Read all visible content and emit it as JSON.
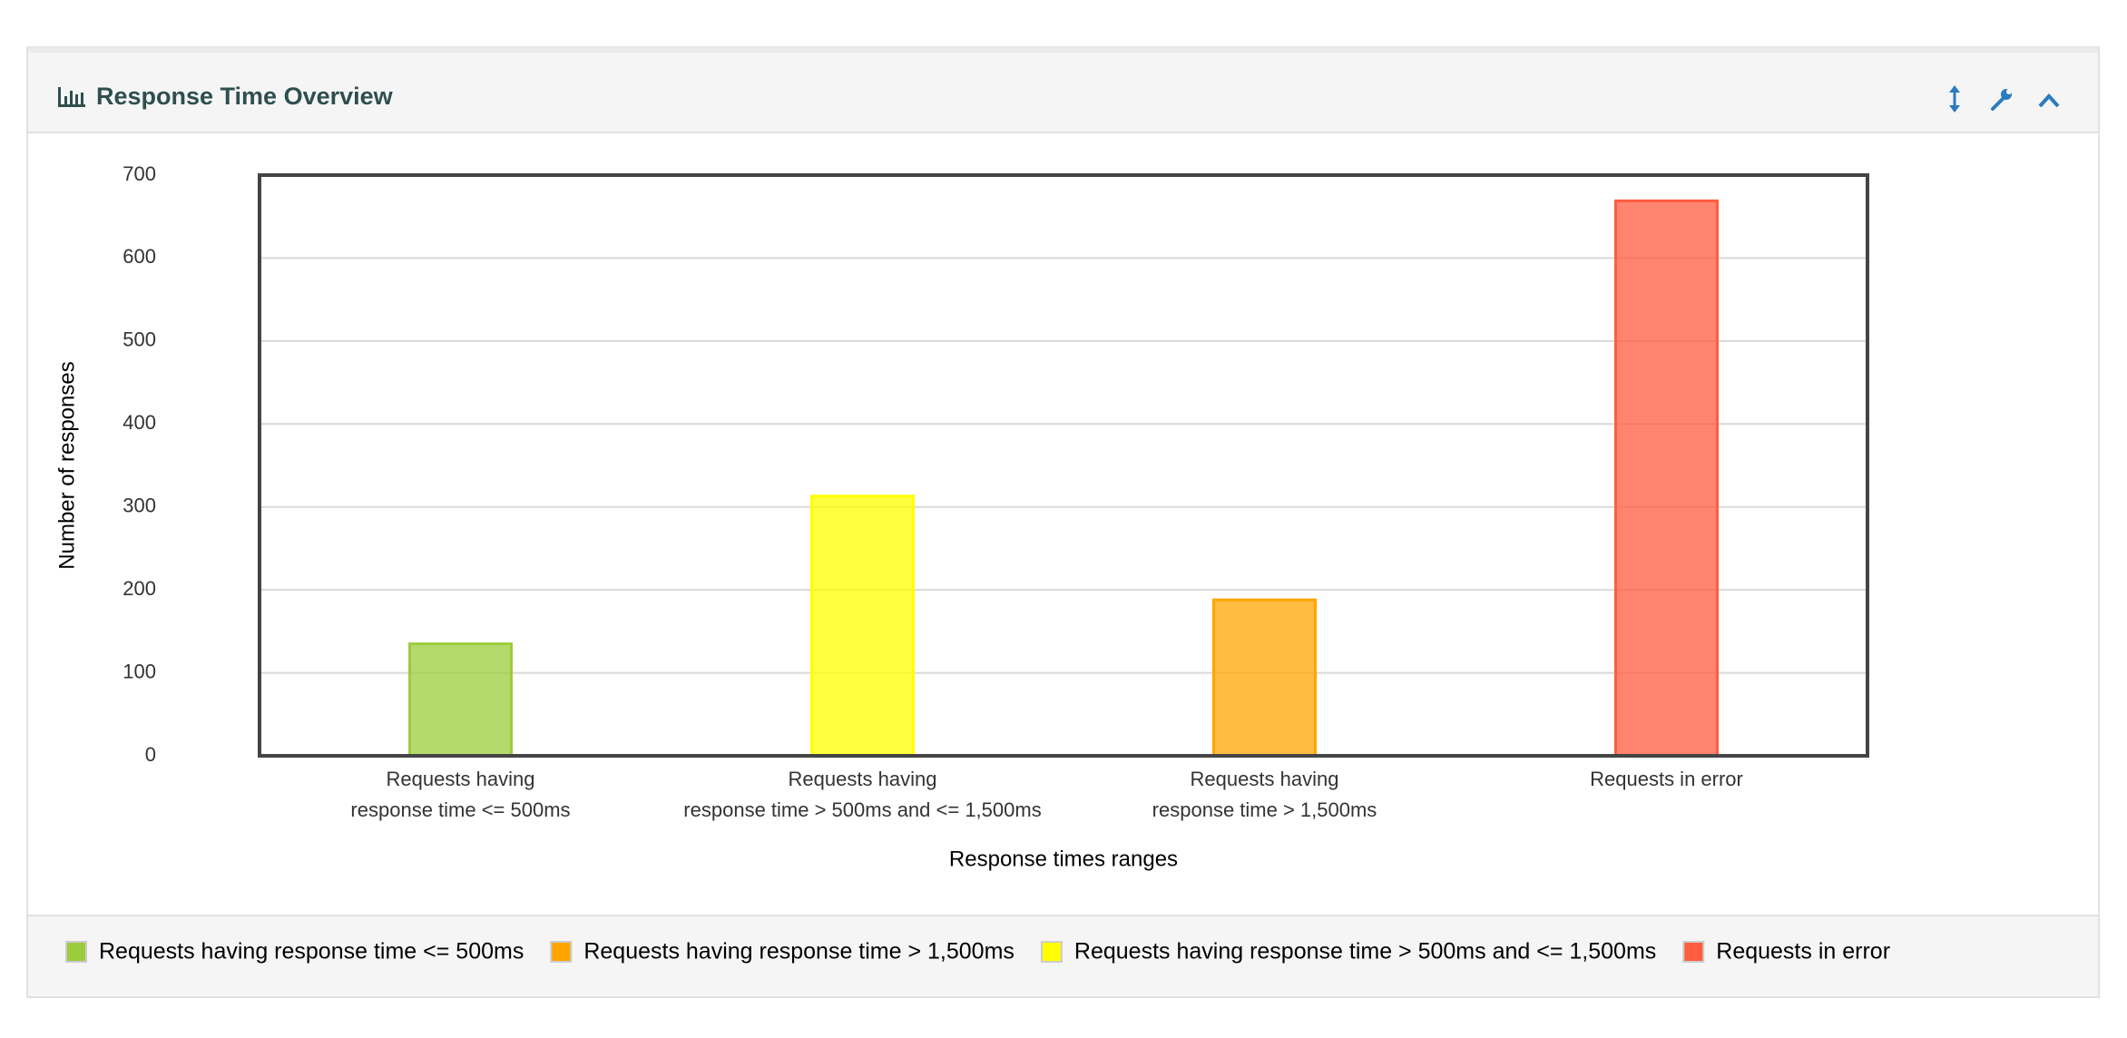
{
  "panel_title": "Response Time Overview",
  "chart_data": {
    "type": "bar",
    "x_label": "Response times ranges",
    "y_label": "Number of responses",
    "categories": [
      [
        "Requests having",
        "response time <= 500ms"
      ],
      [
        "Requests having",
        "response time > 500ms and <= 1,500ms"
      ],
      [
        "Requests having",
        "response time > 1,500ms"
      ],
      [
        "Requests in error"
      ]
    ],
    "series": [
      {
        "name": "Requests having response time <= 500ms",
        "color": "#9ccc3c",
        "values": [
          135,
          null,
          null,
          null
        ]
      },
      {
        "name": "Requests having response time > 1,500ms",
        "color": "#ffa500",
        "values": [
          null,
          null,
          188,
          null
        ]
      },
      {
        "name": "Requests having response time > 500ms and <= 1,500ms",
        "color": "#ffff00",
        "values": [
          null,
          313,
          null,
          null
        ]
      },
      {
        "name": "Requests in error",
        "color": "#ff5c40",
        "values": [
          null,
          null,
          null,
          669
        ]
      }
    ],
    "ylim": [
      0,
      700
    ],
    "yticks": [
      0,
      100,
      200,
      300,
      400,
      500,
      600,
      700
    ],
    "grid": true
  }
}
